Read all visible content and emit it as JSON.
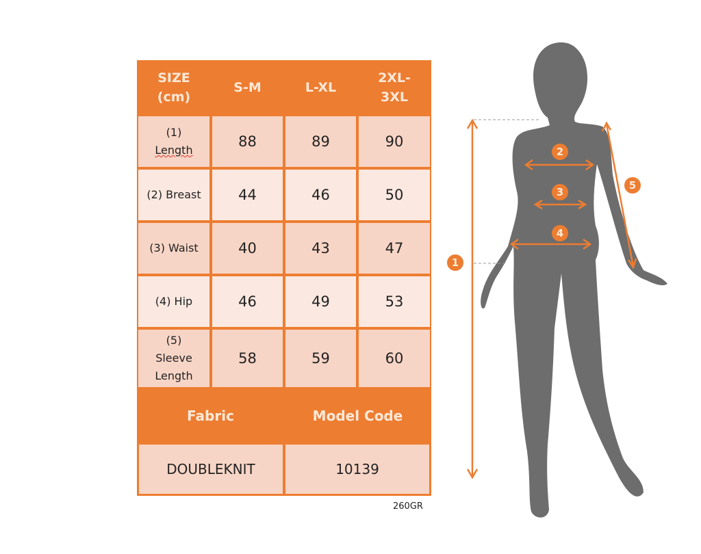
{
  "table": {
    "header": [
      "SIZE (cm)",
      "S-M",
      "L-XL",
      "2XL-3XL"
    ],
    "header_lines": [
      [
        "SIZE",
        "(cm)"
      ],
      [
        "S-M"
      ],
      [
        "L-XL"
      ],
      [
        "2XL-",
        "3XL"
      ]
    ],
    "rows": [
      {
        "label_lines": [
          "(1)",
          "Length"
        ],
        "values": [
          "88",
          "89",
          "90"
        ]
      },
      {
        "label_lines": [
          "(2) Breast"
        ],
        "values": [
          "44",
          "46",
          "50"
        ]
      },
      {
        "label_lines": [
          "(3) Waist"
        ],
        "values": [
          "40",
          "43",
          "47"
        ]
      },
      {
        "label_lines": [
          "(4) Hip"
        ],
        "values": [
          "46",
          "49",
          "53"
        ]
      },
      {
        "label_lines": [
          "(5)",
          "Sleeve",
          "Length"
        ],
        "values": [
          "58",
          "59",
          "60"
        ]
      }
    ],
    "footer_headers": [
      "Fabric",
      "Model Code"
    ],
    "footer_values": [
      "DOUBLEKNIT",
      "10139"
    ]
  },
  "note": "260GR",
  "figure": {
    "markers": [
      "1",
      "2",
      "3",
      "4",
      "5"
    ]
  },
  "colors": {
    "accent": "#ed7d31",
    "header_text": "#fde9d9",
    "row_dark": "#f7d5c6",
    "row_light": "#fbe9e1",
    "silhouette": "#6d6d6d"
  }
}
